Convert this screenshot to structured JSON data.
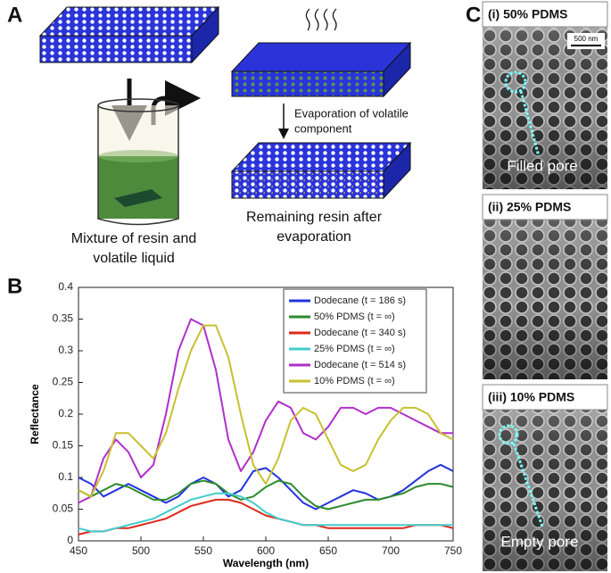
{
  "panel_labels": [
    "A",
    "B",
    "C"
  ],
  "panel_a": {
    "mixture_caption": [
      "Mixture of resin and",
      "volatile liquid"
    ],
    "evaporation_caption": [
      "Evaporation of volatile",
      "component"
    ],
    "remaining_caption": [
      "Remaining resin after",
      "evaporation"
    ]
  },
  "panel_c": {
    "images": [
      {
        "title": "(i) 50% PDMS",
        "scale_bar": "500 nm",
        "annotation": "Filled pore"
      },
      {
        "title": "(ii) 25% PDMS"
      },
      {
        "title": "(iii) 10% PDMS",
        "annotation": "Empty pore"
      }
    ]
  },
  "chart_data": {
    "type": "line",
    "x_label": "Wavelength (nm)",
    "y_label": "Reflectance",
    "x": [
      450,
      460,
      470,
      480,
      490,
      500,
      510,
      520,
      530,
      540,
      550,
      560,
      570,
      580,
      590,
      600,
      610,
      620,
      630,
      640,
      650,
      660,
      670,
      680,
      690,
      700,
      710,
      720,
      730,
      740,
      750
    ],
    "xlim": [
      450,
      750
    ],
    "xticks": [
      450,
      500,
      550,
      600,
      650,
      700,
      750
    ],
    "ylim": [
      0,
      0.4
    ],
    "yticks": [
      0,
      0.05,
      0.1,
      0.15,
      0.2,
      0.25,
      0.3,
      0.35,
      0.4
    ],
    "legend": "upper right",
    "series": [
      {
        "name": "Dodecane (t = 186 s)",
        "color": "#2233dd",
        "values": [
          0.1,
          0.09,
          0.07,
          0.08,
          0.09,
          0.08,
          0.07,
          0.06,
          0.07,
          0.09,
          0.1,
          0.09,
          0.07,
          0.08,
          0.11,
          0.115,
          0.1,
          0.08,
          0.06,
          0.05,
          0.06,
          0.07,
          0.08,
          0.075,
          0.065,
          0.07,
          0.08,
          0.095,
          0.11,
          0.12,
          0.11
        ]
      },
      {
        "name": "50% PDMS (t = ∞)",
        "color": "#2e8b2e",
        "values": [
          0.08,
          0.07,
          0.08,
          0.09,
          0.085,
          0.075,
          0.065,
          0.065,
          0.075,
          0.09,
          0.095,
          0.09,
          0.075,
          0.065,
          0.07,
          0.085,
          0.095,
          0.09,
          0.07,
          0.055,
          0.05,
          0.055,
          0.06,
          0.065,
          0.065,
          0.07,
          0.075,
          0.085,
          0.09,
          0.09,
          0.085
        ]
      },
      {
        "name": "Dodecane (t = 340 s)",
        "color": "#dd2a1a",
        "values": [
          0.01,
          0.015,
          0.015,
          0.02,
          0.02,
          0.025,
          0.03,
          0.035,
          0.045,
          0.055,
          0.06,
          0.065,
          0.065,
          0.06,
          0.05,
          0.04,
          0.035,
          0.03,
          0.025,
          0.025,
          0.02,
          0.02,
          0.02,
          0.02,
          0.02,
          0.02,
          0.02,
          0.025,
          0.025,
          0.025,
          0.02
        ]
      },
      {
        "name": "25% PDMS (t = ∞)",
        "color": "#44cccc",
        "values": [
          0.02,
          0.015,
          0.015,
          0.02,
          0.025,
          0.03,
          0.035,
          0.045,
          0.055,
          0.065,
          0.07,
          0.075,
          0.075,
          0.07,
          0.06,
          0.045,
          0.035,
          0.03,
          0.025,
          0.025,
          0.025,
          0.025,
          0.025,
          0.025,
          0.025,
          0.025,
          0.025,
          0.025,
          0.025,
          0.025,
          0.025
        ]
      },
      {
        "name": "Dodecane (t = 514 s)",
        "color": "#b030c8",
        "values": [
          0.06,
          0.07,
          0.13,
          0.16,
          0.14,
          0.1,
          0.12,
          0.2,
          0.3,
          0.35,
          0.34,
          0.27,
          0.16,
          0.11,
          0.14,
          0.19,
          0.22,
          0.21,
          0.17,
          0.16,
          0.18,
          0.21,
          0.21,
          0.2,
          0.21,
          0.21,
          0.2,
          0.19,
          0.18,
          0.17,
          0.17
        ]
      },
      {
        "name": "10% PDMS (t = ∞)",
        "color": "#c8c030",
        "values": [
          0.08,
          0.07,
          0.11,
          0.17,
          0.17,
          0.15,
          0.13,
          0.17,
          0.24,
          0.3,
          0.34,
          0.34,
          0.29,
          0.2,
          0.12,
          0.09,
          0.13,
          0.19,
          0.21,
          0.2,
          0.16,
          0.12,
          0.11,
          0.12,
          0.16,
          0.19,
          0.21,
          0.21,
          0.2,
          0.17,
          0.16
        ]
      }
    ]
  }
}
